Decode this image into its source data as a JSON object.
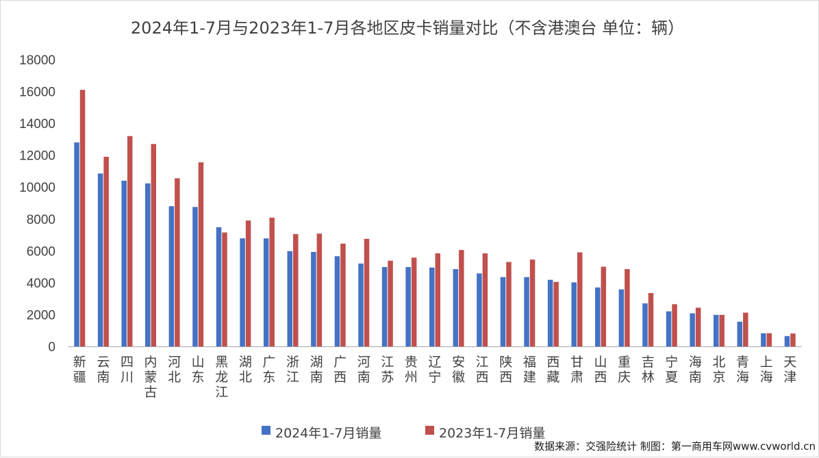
{
  "source_note": "数据来源：交强险统计 制图：第一商用车网www.cvworld.cn",
  "colors": {
    "series_2024": "#4472C4",
    "series_2023": "#C0504D",
    "axis": "#a6a6a6",
    "text": "#404040"
  },
  "chart_data": {
    "type": "bar",
    "title": "2024年1-7月与2023年1-7月各地区皮卡销量对比（不含港澳台 单位：辆）",
    "xlabel": "",
    "ylabel": "",
    "ylim": [
      0,
      18000
    ],
    "yticks": [
      0,
      2000,
      4000,
      6000,
      8000,
      10000,
      12000,
      14000,
      16000,
      18000
    ],
    "grid": false,
    "legend_position": "bottom",
    "categories": [
      "新疆",
      "云南",
      "四川",
      "内蒙古",
      "河北",
      "山东",
      "黑龙江",
      "湖北",
      "广东",
      "浙江",
      "湖南",
      "广西",
      "河南",
      "江苏",
      "贵州",
      "辽宁",
      "安徽",
      "江西",
      "陕西",
      "福建",
      "西藏",
      "甘肃",
      "山西",
      "重庆",
      "吉林",
      "宁夏",
      "海南",
      "北京",
      "青海",
      "上海",
      "天津"
    ],
    "series": [
      {
        "name": "2024年1-7月销量",
        "values": [
          12800,
          10850,
          10400,
          10230,
          8800,
          8750,
          7480,
          6780,
          6780,
          5980,
          5930,
          5660,
          5200,
          4980,
          4980,
          4950,
          4850,
          4580,
          4350,
          4350,
          4180,
          4020,
          3700,
          3580,
          2700,
          2200,
          2080,
          1980,
          1550,
          820,
          650
        ]
      },
      {
        "name": "2023年1-7月销量",
        "values": [
          16100,
          11900,
          13200,
          12700,
          10550,
          11550,
          7150,
          7900,
          8080,
          7050,
          7080,
          6450,
          6750,
          5380,
          5570,
          5840,
          6050,
          5840,
          5300,
          5450,
          4050,
          5900,
          5000,
          4850,
          3350,
          2650,
          2430,
          1980,
          2120,
          830,
          810
        ]
      }
    ]
  }
}
